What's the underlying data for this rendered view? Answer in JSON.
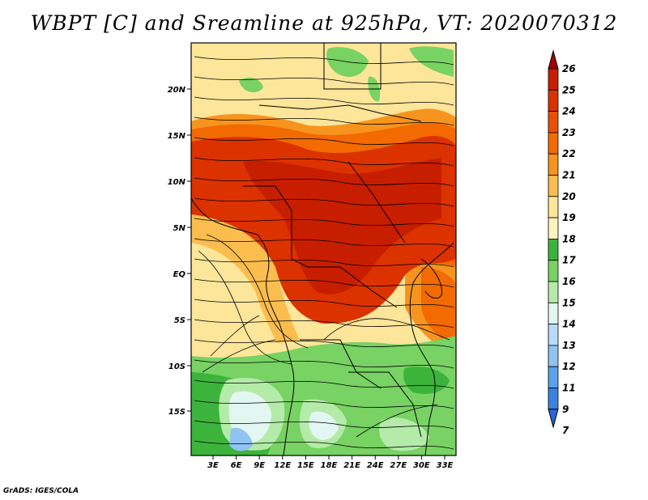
{
  "title": "WBPT [C] and Sreamline at 925hPa, VT: 2020070312",
  "footer": "GrADS: IGES/COLA",
  "map": {
    "lat_labels": [
      "20N",
      "15N",
      "10N",
      "5N",
      "EQ",
      "5S",
      "10S",
      "15S"
    ],
    "lon_labels": [
      "3E",
      "6E",
      "9E",
      "12E",
      "15E",
      "18E",
      "21E",
      "24E",
      "27E",
      "30E",
      "33E"
    ]
  },
  "colorbar": {
    "levels": [
      "26",
      "25",
      "24",
      "23",
      "22",
      "21",
      "20",
      "19",
      "18",
      "17",
      "16",
      "15",
      "14",
      "13",
      "12",
      "11",
      "9",
      "7"
    ],
    "colors": [
      "#a50000",
      "#c81e00",
      "#dc3200",
      "#ea4f0a",
      "#f26a00",
      "#f7941d",
      "#fbbd4e",
      "#fde59a",
      "#fff3bf",
      "#3cb43c",
      "#78d264",
      "#b4eba8",
      "#e2f7f2",
      "#b8dcf8",
      "#8fc3f2",
      "#5aa2ea",
      "#3b82e0",
      "#2b66d4"
    ]
  }
}
